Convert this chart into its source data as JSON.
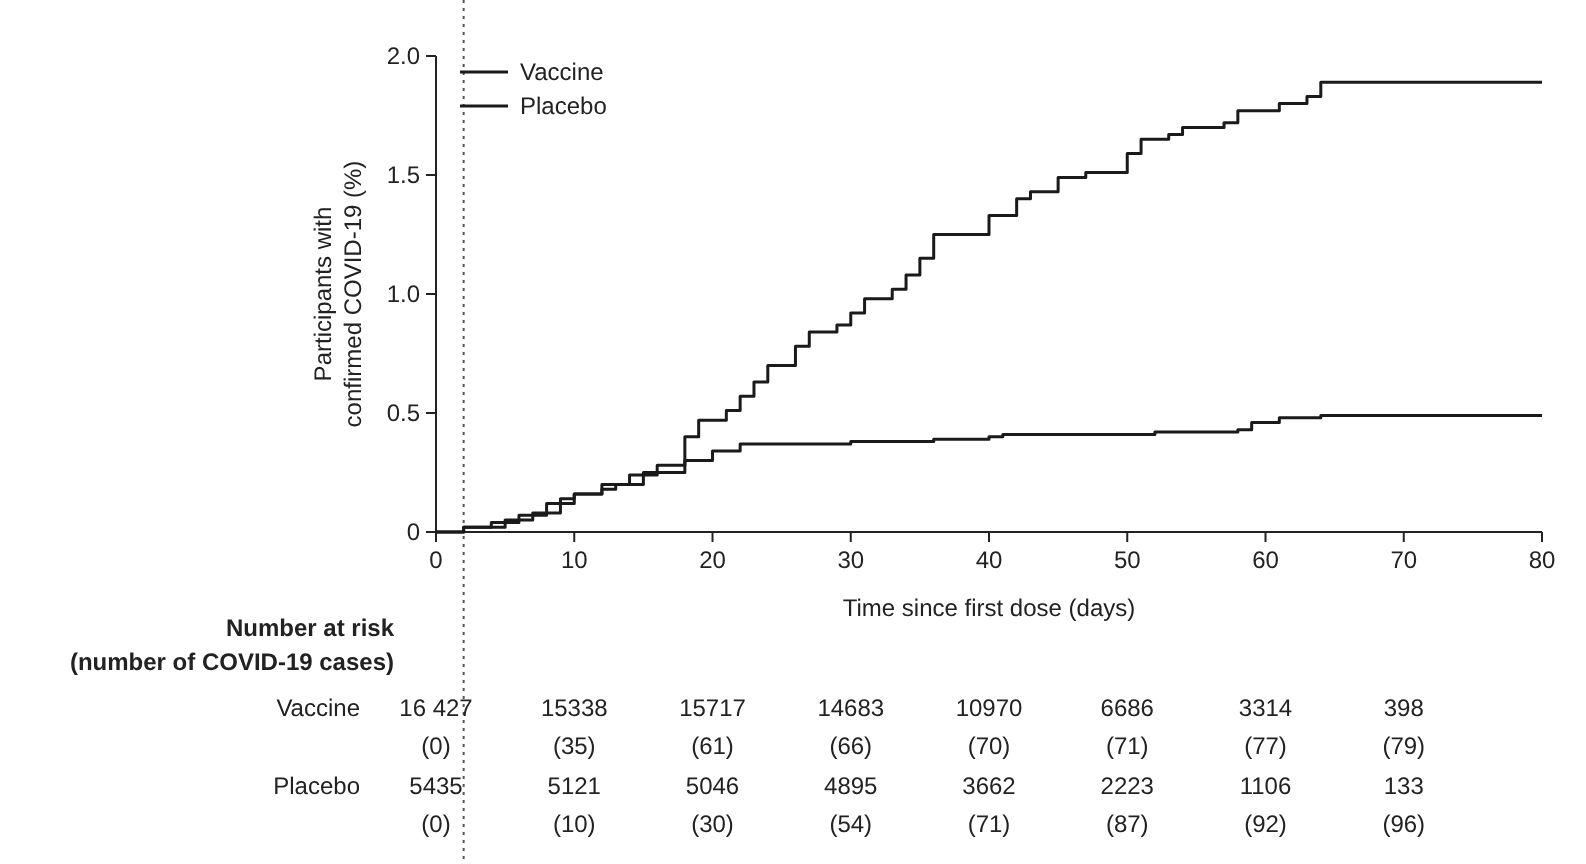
{
  "chart_data": {
    "type": "step",
    "xlabel": "Time since first dose (days)",
    "ylabel": "Participants with confirmed COVID-19 (%)",
    "xlim": [
      0,
      80
    ],
    "xticks": [
      0,
      10,
      20,
      30,
      40,
      50,
      60,
      70,
      80
    ],
    "ylim": [
      0,
      2
    ],
    "yticks": [
      0,
      0.5,
      {
        "value": 1,
        "label": "1.0"
      },
      1.5,
      {
        "value": 2,
        "label": "2.0"
      }
    ],
    "legend": "top left",
    "grid": false,
    "ref_lines": [
      {
        "axis": "x",
        "value": 2,
        "line_style": "dotted",
        "color": "#555555"
      }
    ],
    "series": [
      {
        "name": "Vaccine",
        "color": "#1a1a1a",
        "x": [
          0,
          2,
          4,
          6,
          8,
          10,
          12,
          14,
          16,
          18,
          20,
          22,
          30,
          36,
          40,
          41,
          52,
          58,
          59,
          61,
          64,
          80
        ],
        "values": [
          0,
          0.02,
          0.04,
          0.07,
          0.12,
          0.16,
          0.2,
          0.24,
          0.28,
          0.3,
          0.34,
          0.37,
          0.38,
          0.39,
          0.4,
          0.41,
          0.42,
          0.43,
          0.46,
          0.48,
          0.49,
          0.49
        ]
      },
      {
        "name": "Placebo",
        "color": "#1a1a1a",
        "x": [
          0,
          2,
          5,
          7,
          9,
          10,
          12,
          13,
          15,
          18,
          19,
          21,
          22,
          23,
          24,
          26,
          27,
          29,
          30,
          31,
          33,
          34,
          35,
          36,
          40,
          42,
          43,
          45,
          47,
          50,
          51,
          53,
          54,
          57,
          58,
          61,
          63,
          64,
          80
        ],
        "values": [
          0,
          0.02,
          0.05,
          0.08,
          0.14,
          0.16,
          0.18,
          0.2,
          0.25,
          0.4,
          0.47,
          0.51,
          0.57,
          0.63,
          0.7,
          0.78,
          0.84,
          0.87,
          0.92,
          0.98,
          1.02,
          1.08,
          1.15,
          1.25,
          1.33,
          1.4,
          1.43,
          1.49,
          1.51,
          1.59,
          1.65,
          1.67,
          1.7,
          1.72,
          1.77,
          1.8,
          1.83,
          1.89,
          1.89
        ]
      }
    ],
    "annotations": [
      "Number at risk (number of COVID-19 cases)",
      "Vaccine",
      "16 427",
      "15338",
      "15717",
      "14683",
      "10970",
      "6686",
      "3314",
      "398",
      "(0)",
      "(35)",
      "(61)",
      "(66)",
      "(70)",
      "(71)",
      "(77)",
      "(79)",
      "Placebo",
      "5435",
      "5121",
      "5046",
      "4895",
      "3662",
      "2223",
      "1106",
      "133",
      "(0)",
      "(10)",
      "(30)",
      "(54)",
      "(71)",
      "(87)",
      "(92)",
      "(96)"
    ]
  }
}
